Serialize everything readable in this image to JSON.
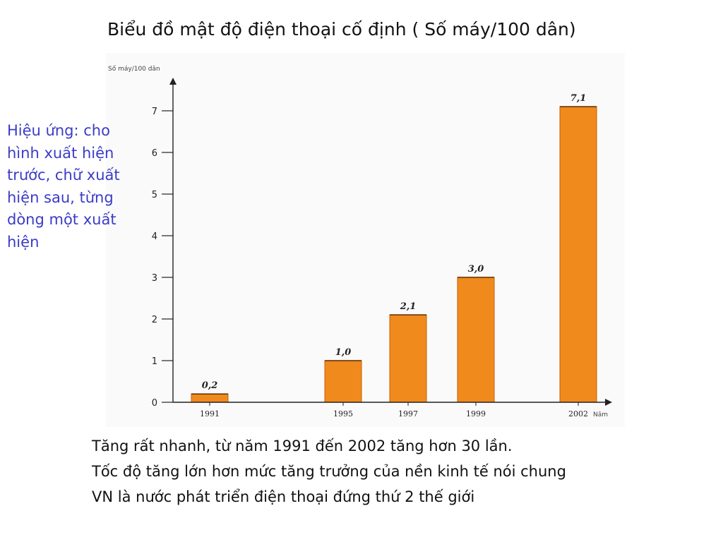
{
  "slide": {
    "title": "Biểu đồ mật độ điện thoại cố định ( Số máy/100 dân)",
    "side_note_lines": [
      "Hiệu ứng: cho",
      "hình xuất hiện",
      "trước, chữ xuất",
      "hiện sau, từng",
      "dòng một xuất",
      "hiện"
    ],
    "bottom_lines": [
      "Tăng rất nhanh, từ năm 1991 đến 2002 tăng hơn 30 lần.",
      "Tốc độ tăng lớn hơn mức tăng trưởng của nền kinh tế nói chung",
      "VN là nước phát triển điện thoại đứng thứ 2 thế giới"
    ]
  },
  "chart_data": {
    "type": "bar",
    "title": "",
    "xlabel": "Năm",
    "ylabel": "Số máy/100 dân",
    "categories": [
      "1991",
      "1995",
      "1997",
      "1999",
      "2002"
    ],
    "values": [
      0.2,
      1.0,
      2.1,
      3.0,
      7.1
    ],
    "value_labels": [
      "0,2",
      "1,0",
      "2,1",
      "3,0",
      "7,1"
    ],
    "ylim": [
      0,
      7.5
    ],
    "yticks": [
      0,
      1,
      2,
      3,
      4,
      5,
      6,
      7
    ],
    "grid": false,
    "bar_color": "#f08a1c",
    "bar_edge_color": "#c85f00"
  }
}
